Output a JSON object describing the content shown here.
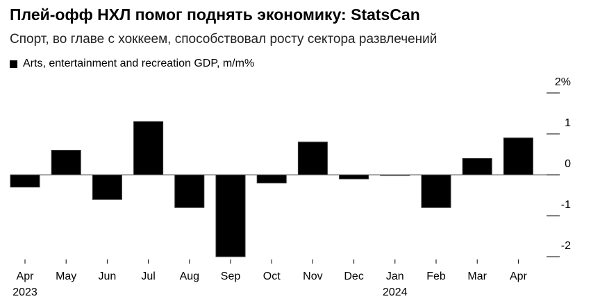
{
  "title": "Плей-офф НХЛ помог поднять экономику: StatsCan",
  "subtitle": "Спорт, во главе с хоккеем, способствовал росту сектора развлечений",
  "chart_data": {
    "type": "bar",
    "legend": {
      "entries": [
        "Arts, entertainment and recreation GDP, m/m%"
      ],
      "placement": "top-left"
    },
    "categories": [
      "Apr",
      "May",
      "Jun",
      "Jul",
      "Aug",
      "Sep",
      "Oct",
      "Nov",
      "Dec",
      "Jan",
      "Feb",
      "Mar",
      "Apr"
    ],
    "year_labels": [
      {
        "index": 0,
        "label": "2023"
      },
      {
        "index": 9,
        "label": "2024"
      }
    ],
    "series": [
      {
        "name": "Arts, entertainment and recreation GDP, m/m%",
        "values": [
          -0.3,
          0.6,
          -0.6,
          1.3,
          -0.8,
          -2.0,
          -0.2,
          0.8,
          -0.1,
          0.0,
          -0.8,
          0.4,
          0.9
        ]
      }
    ],
    "y_ticks": [
      {
        "value": 2,
        "label": "2%"
      },
      {
        "value": 1,
        "label": "1"
      },
      {
        "value": 0,
        "label": "0"
      },
      {
        "value": -1,
        "label": "-1"
      },
      {
        "value": -2,
        "label": "-2"
      }
    ],
    "ylim": [
      -2,
      2
    ],
    "y_axis_position": "right",
    "grid": false,
    "bar_color": "#000000"
  }
}
